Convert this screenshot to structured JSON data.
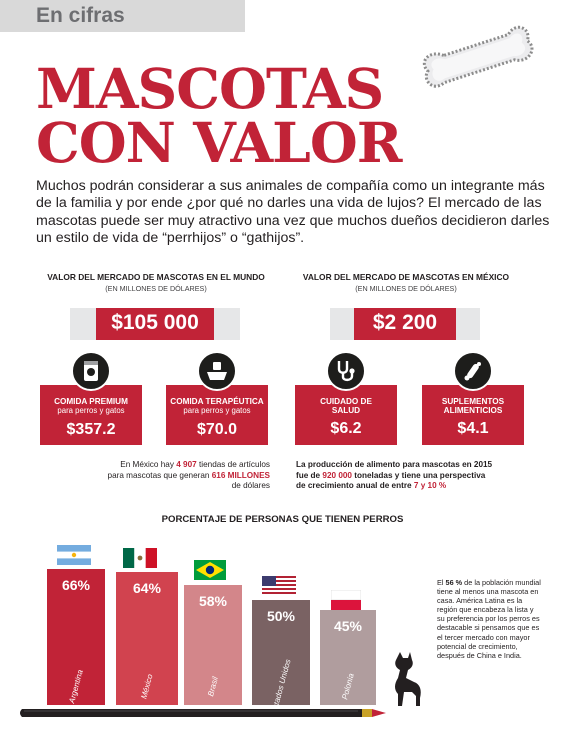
{
  "section": "En cifras",
  "title": {
    "line1": "MASCOTAS",
    "line2": "CON VALOR"
  },
  "intro": "Muchos podrán considerar a sus animales de compañía como un integrante más de la familia y por ende ¿por qué no darles una vida de lujos? El mercado de las mascotas puede ser muy atractivo una vez que muchos dueños decidieron darles un estilo de vida de “perrhijos” o “gathijos”.",
  "world": {
    "heading": "VALOR DEL MERCADO DE MASCOTAS EN EL MUNDO",
    "sub": "(EN MILLONES DE DÓLARES)",
    "value": "$105 000",
    "categories": [
      {
        "t1": "COMIDA PREMIUM",
        "t2": "para perros y gatos",
        "value": "$357.2",
        "icon": "pet-food-can-icon"
      },
      {
        "t1": "COMIDA TERAPÉUTICA",
        "t2": "para perros y gatos",
        "value": "$70.0",
        "icon": "medicine-bowl-icon"
      }
    ],
    "note": {
      "a": "En México hay ",
      "b": "4 907",
      "c": " tiendas de artículos",
      "d": "para mascotas que generan ",
      "e": "616 MILLONES",
      "f": "de dólares"
    }
  },
  "mexico": {
    "heading": "VALOR DEL MERCADO DE MASCOTAS EN MÉXICO",
    "sub": "(EN MILLONES DE DÓLARES)",
    "value": "$2 200",
    "categories": [
      {
        "t1": "CUIDADO DE",
        "t2": "SALUD",
        "value": "$6.2",
        "icon": "stethoscope-icon"
      },
      {
        "t1": "SUPLEMENTOS",
        "t2": "ALIMENTICIOS",
        "value": "$4.1",
        "icon": "supplement-pills-icon"
      }
    ],
    "note": {
      "a": "La producción de alimento para mascotas en 2015",
      "b": "fue de ",
      "c": "920 000",
      "d": " toneladas y tiene una perspectiva",
      "e": "de crecimiento anual de entre ",
      "f": "7 y 10 %"
    }
  },
  "dogs": {
    "heading": "PORCENTAJE DE PERSONAS QUE TIENEN PERROS",
    "bars": [
      {
        "pct": "66%",
        "country": "Argentina",
        "color": "#c12337"
      },
      {
        "pct": "64%",
        "country": "México",
        "color": "#d1434f"
      },
      {
        "pct": "58%",
        "country": "Brasil",
        "color": "#d3868a"
      },
      {
        "pct": "50%",
        "country": "Estados Unidos",
        "color": "#7a6263"
      },
      {
        "pct": "45%",
        "country": "Polonia",
        "color": "#b09d9e"
      }
    ]
  },
  "side_note": {
    "a": "El ",
    "b": "56 %",
    "c": " de la población mundial tiene al menos una mascota en casa. América Latina es la región que encabeza la lista y su preferencia por los perros es destacable si pensamos que es el tercer mercado con mayor potencial de crecimiento, después de China e India."
  }
}
